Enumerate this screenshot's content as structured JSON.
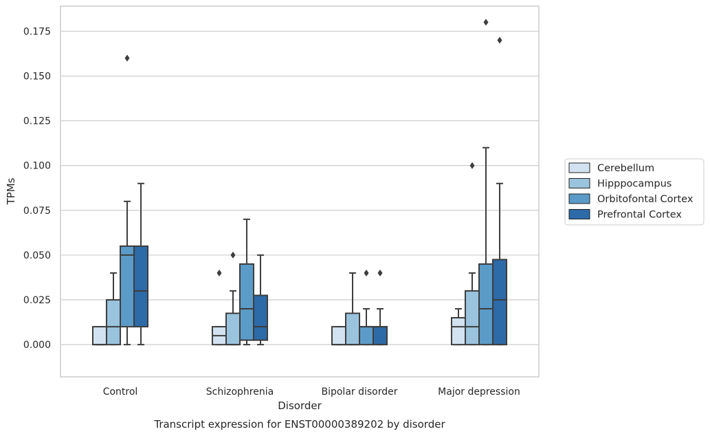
{
  "chart_data": {
    "type": "box",
    "caption": "Transcript expression for ENST00000389202 by disorder",
    "xlabel": "Disorder",
    "ylabel": "TPMs",
    "ylim": [
      -0.018,
      0.189
    ],
    "yticks": [
      "0.000",
      "0.025",
      "0.050",
      "0.075",
      "0.100",
      "0.125",
      "0.150",
      "0.175"
    ],
    "ytick_values": [
      0,
      0.025,
      0.05,
      0.075,
      0.1,
      0.125,
      0.15,
      0.175
    ],
    "grid": "horizontal",
    "legend_position": "right",
    "categories": [
      "Control",
      "Schizophrenia",
      "Bipolar disorder",
      "Major depression"
    ],
    "series": [
      {
        "name": "Cerebellum",
        "color": "#d2e2f1",
        "boxes": [
          {
            "q1": 0,
            "median": 0,
            "q3": 0.01,
            "whisker_low": 0,
            "whisker_high": 0.01,
            "outliers": []
          },
          {
            "q1": 0,
            "median": 0.005,
            "q3": 0.01,
            "whisker_low": 0,
            "whisker_high": 0.01,
            "outliers": [
              0.04
            ]
          },
          {
            "q1": 0,
            "median": 0,
            "q3": 0.01,
            "whisker_low": 0,
            "whisker_high": 0.01,
            "outliers": []
          },
          {
            "q1": 0,
            "median": 0.01,
            "q3": 0.015,
            "whisker_low": 0,
            "whisker_high": 0.02,
            "outliers": []
          }
        ]
      },
      {
        "name": "Hipppocampus",
        "color": "#9ac3dd",
        "boxes": [
          {
            "q1": 0,
            "median": 0.01,
            "q3": 0.025,
            "whisker_low": 0,
            "whisker_high": 0.04,
            "outliers": []
          },
          {
            "q1": 0,
            "median": 0,
            "q3": 0.0175,
            "whisker_low": 0,
            "whisker_high": 0.03,
            "outliers": [
              0.05
            ]
          },
          {
            "q1": 0,
            "median": 0,
            "q3": 0.0175,
            "whisker_low": 0,
            "whisker_high": 0.04,
            "outliers": []
          },
          {
            "q1": 0,
            "median": 0.01,
            "q3": 0.03,
            "whisker_low": 0,
            "whisker_high": 0.04,
            "outliers": [
              0.1
            ]
          }
        ]
      },
      {
        "name": "Orbitofontal Cortex",
        "color": "#5b9bc8",
        "boxes": [
          {
            "q1": 0.01,
            "median": 0.05,
            "q3": 0.055,
            "whisker_low": 0,
            "whisker_high": 0.08,
            "outliers": [
              0.16
            ]
          },
          {
            "q1": 0.0025,
            "median": 0.02,
            "q3": 0.045,
            "whisker_low": 0,
            "whisker_high": 0.07,
            "outliers": []
          },
          {
            "q1": 0,
            "median": 0.01,
            "q3": 0.01,
            "whisker_low": 0,
            "whisker_high": 0.02,
            "outliers": [
              0.04
            ]
          },
          {
            "q1": 0,
            "median": 0.02,
            "q3": 0.045,
            "whisker_low": 0,
            "whisker_high": 0.11,
            "outliers": [
              0.18
            ]
          }
        ]
      },
      {
        "name": "Prefrontal Cortex",
        "color": "#2d6aa8",
        "boxes": [
          {
            "q1": 0.01,
            "median": 0.03,
            "q3": 0.055,
            "whisker_low": 0,
            "whisker_high": 0.09,
            "outliers": []
          },
          {
            "q1": 0.0025,
            "median": 0.01,
            "q3": 0.0275,
            "whisker_low": 0,
            "whisker_high": 0.05,
            "outliers": []
          },
          {
            "q1": 0,
            "median": 0.01,
            "q3": 0.01,
            "whisker_low": 0,
            "whisker_high": 0.02,
            "outliers": [
              0.04
            ]
          },
          {
            "q1": 0,
            "median": 0.025,
            "q3": 0.0475,
            "whisker_low": 0,
            "whisker_high": 0.09,
            "outliers": [
              0.17
            ]
          }
        ]
      }
    ]
  }
}
